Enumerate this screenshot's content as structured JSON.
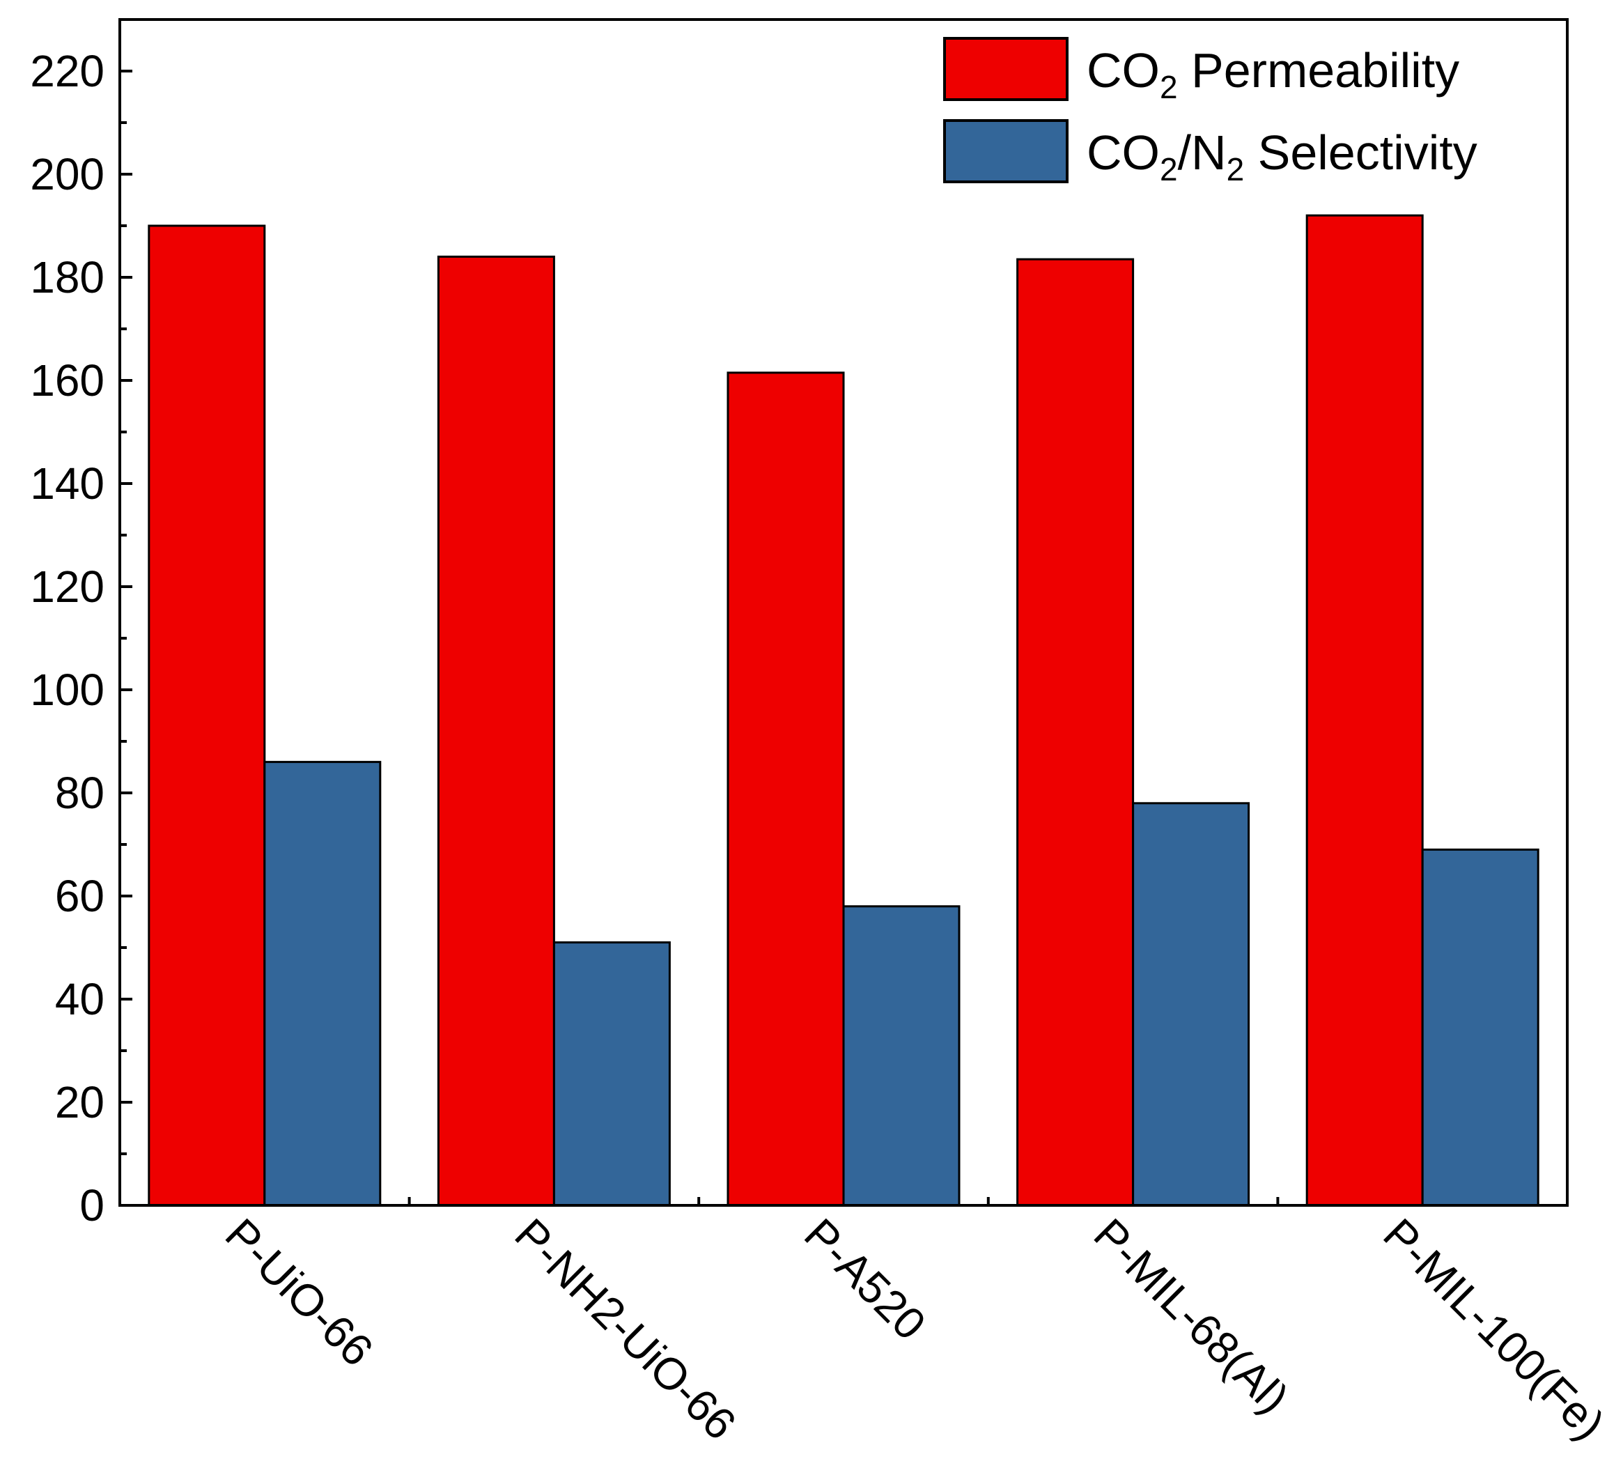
{
  "chart_data": {
    "type": "bar",
    "categories": [
      "P-UiO-66",
      "P-NH2-UiO-66",
      "P-A520",
      "P-MIL-68(Al)",
      "P-MIL-100(Fe)"
    ],
    "series": [
      {
        "name": "CO2 Permeability",
        "legend": {
          "base": "CO",
          "sub": "2",
          "rest": " Permeability"
        },
        "color": "#ee0000",
        "values": [
          190,
          184,
          161.5,
          183.5,
          192
        ]
      },
      {
        "name": "CO2/N2 Selectivity",
        "legend": {
          "base": "CO",
          "sub": "2",
          "mid": "/N",
          "sub2": "2",
          "rest": " Selectivity"
        },
        "color": "#336699",
        "values": [
          86,
          51,
          58,
          78,
          69
        ]
      }
    ],
    "ylim": [
      0,
      230
    ],
    "yticks": [
      0,
      20,
      40,
      60,
      80,
      100,
      120,
      140,
      160,
      180,
      200,
      220
    ],
    "legend_position": "top-right",
    "grid": false,
    "xlabel": "",
    "ylabel": ""
  }
}
